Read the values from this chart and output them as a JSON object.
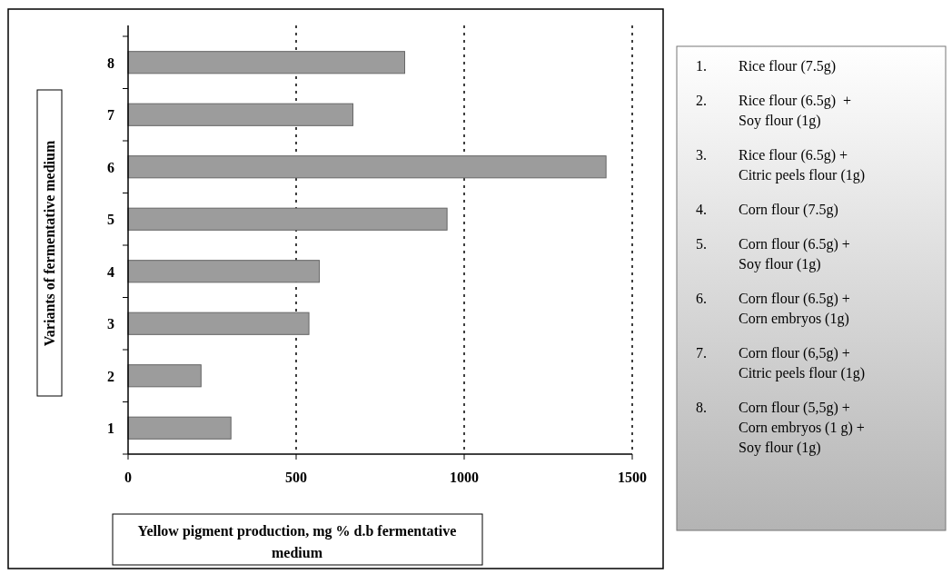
{
  "chart_data": {
    "type": "bar",
    "orientation": "horizontal",
    "xlabel": "Yellow pigment production, mg % d.b fermentative medium",
    "ylabel": "Variants of fermentative medium",
    "categories": [
      "8",
      "7",
      "6",
      "5",
      "4",
      "3",
      "2",
      "1"
    ],
    "values": [
      823,
      669,
      1422,
      949,
      569,
      538,
      217,
      306
    ],
    "color": "#9c9c9c",
    "xlim": [
      0,
      1500
    ],
    "xticks": [
      0,
      500,
      1000,
      1500
    ],
    "grid": "x",
    "annotations": [
      "1. Rice flour (7.5g)",
      "2. Rice flour (6.5g)  +\nSoy flour (1g)",
      "3. Rice flour (6.5g) +\nCitric peels flour (1g)",
      "4. Corn flour (7.5g)",
      "5. Corn flour (6.5g) +\nSoy flour (1g)",
      "6. Corn flour (6.5g) +\nCorn embryos (1g)",
      "7. Corn flour (6,5g) +\nCitric peels flour (1g)",
      "8. Corn flour (5,5g) +\nCorn embryos (1 g) +\nSoy flour (1g)"
    ]
  }
}
